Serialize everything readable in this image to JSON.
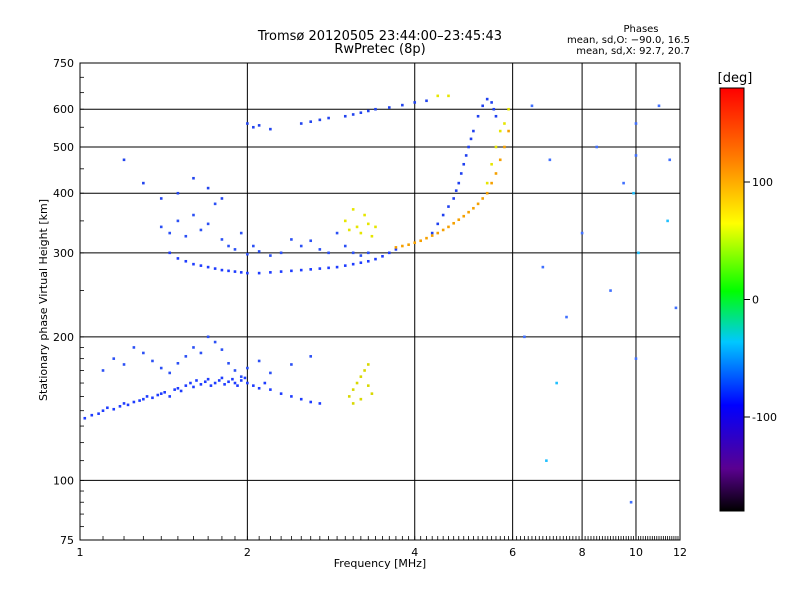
{
  "chart_data": {
    "type": "scatter",
    "title": "Tromsø 20120505 23:44:00–23:45:43",
    "subtitle": "RwPretec (8p)",
    "xlabel": "Frequency [MHz]",
    "ylabel": "Stationary phase Virtual Height [km]",
    "x_scale": "log",
    "y_scale": "log",
    "xlim": [
      1,
      12
    ],
    "ylim": [
      75,
      750
    ],
    "x_ticks": [
      1,
      2,
      4,
      6,
      8,
      10,
      12
    ],
    "y_ticks": [
      75,
      100,
      200,
      300,
      400,
      500,
      600,
      750
    ],
    "grid": true,
    "phases_header": "Phases",
    "phases_line1": "mean, sd,O: −90.0, 16.5",
    "phases_line2": "mean, sd,X:  92.7, 20.7",
    "colorbar": {
      "label": "[deg]",
      "range": [
        -180,
        180
      ],
      "ticks": [
        100,
        0,
        -100
      ],
      "colors": [
        "#000000",
        "#5a0090",
        "#0000ff",
        "#00c8ff",
        "#00ff00",
        "#ffff00",
        "#ff8000",
        "#ff0000"
      ]
    },
    "series": [
      {
        "color": "#1e3cff",
        "x": [
          1.02,
          1.05,
          1.08,
          1.1,
          1.12,
          1.15,
          1.18,
          1.2,
          1.22,
          1.25,
          1.28,
          1.3,
          1.32,
          1.35,
          1.38,
          1.4,
          1.42,
          1.45,
          1.48,
          1.5,
          1.52,
          1.55,
          1.58,
          1.6,
          1.62,
          1.65,
          1.68,
          1.7,
          1.72,
          1.75,
          1.78,
          1.8,
          1.82,
          1.85,
          1.88,
          1.9,
          1.92,
          1.95,
          1.98,
          2.0,
          2.05,
          2.1,
          2.15,
          2.2,
          2.3,
          2.4,
          2.5,
          2.6,
          2.7
        ],
        "y": [
          135,
          137,
          138,
          140,
          142,
          141,
          143,
          145,
          144,
          146,
          147,
          148,
          150,
          149,
          151,
          152,
          153,
          150,
          155,
          156,
          154,
          158,
          160,
          157,
          162,
          159,
          161,
          163,
          158,
          160,
          162,
          164,
          159,
          161,
          163,
          160,
          158,
          162,
          164,
          160,
          158,
          156,
          160,
          155,
          152,
          150,
          148,
          146,
          145
        ]
      },
      {
        "color": "#2b50f5",
        "x": [
          1.1,
          1.15,
          1.2,
          1.25,
          1.3,
          1.35,
          1.4,
          1.45,
          1.5,
          1.55,
          1.6,
          1.65,
          1.7,
          1.75,
          1.8,
          1.85,
          1.9,
          1.95,
          2.0,
          2.1,
          2.2,
          2.4,
          2.6
        ],
        "y": [
          170,
          180,
          175,
          190,
          185,
          178,
          172,
          168,
          176,
          182,
          190,
          185,
          200,
          195,
          188,
          176,
          170,
          165,
          172,
          178,
          168,
          175,
          182
        ]
      },
      {
        "color": "#1e3cff",
        "x": [
          1.45,
          1.5,
          1.55,
          1.6,
          1.65,
          1.7,
          1.75,
          1.8,
          1.85,
          1.9,
          1.95,
          2.0,
          2.1,
          2.2,
          2.3,
          2.4,
          2.5,
          2.6,
          2.7,
          2.8,
          2.9,
          3.0,
          3.1,
          3.2,
          3.3,
          3.4,
          3.5,
          3.6,
          3.7
        ],
        "y": [
          300,
          292,
          288,
          284,
          282,
          280,
          278,
          276,
          275,
          274,
          273,
          272,
          272,
          273,
          274,
          275,
          276,
          277,
          278,
          279,
          280,
          282,
          284,
          286,
          288,
          291,
          295,
          300,
          305
        ]
      },
      {
        "color": "#2b50f5",
        "x": [
          1.4,
          1.45,
          1.5,
          1.55,
          1.6,
          1.65,
          1.7,
          1.75,
          1.8,
          1.85,
          1.9,
          1.95,
          2.0,
          2.05,
          2.1,
          2.2,
          2.3,
          2.4,
          2.5,
          2.6,
          2.7,
          2.8,
          2.9,
          3.0,
          3.1,
          3.2,
          3.3
        ],
        "y": [
          340,
          330,
          350,
          325,
          360,
          335,
          345,
          380,
          320,
          310,
          305,
          330,
          298,
          310,
          302,
          296,
          300,
          320,
          310,
          318,
          305,
          300,
          330,
          310,
          300,
          296,
          300
        ]
      },
      {
        "color": "#2244ee",
        "x": [
          1.2,
          1.3,
          1.4,
          1.5,
          1.6,
          1.7,
          1.8,
          2.0,
          2.05,
          2.1,
          2.2,
          2.5,
          2.6,
          2.7,
          2.8,
          3.0,
          3.1,
          3.2,
          3.3,
          3.4,
          3.6,
          3.8,
          4.0,
          4.2
        ],
        "y": [
          470,
          420,
          390,
          400,
          430,
          410,
          390,
          560,
          550,
          555,
          545,
          560,
          565,
          570,
          575,
          580,
          585,
          590,
          595,
          600,
          605,
          612,
          620,
          625
        ]
      },
      {
        "color": "#1f40f0",
        "x": [
          4.3,
          4.4,
          4.5,
          4.6,
          4.7,
          4.75,
          4.8,
          4.85,
          4.9,
          4.95,
          5.0,
          5.05,
          5.1,
          5.2,
          5.3,
          5.4,
          5.5,
          5.55,
          5.6
        ],
        "y": [
          330,
          345,
          360,
          375,
          390,
          405,
          420,
          440,
          460,
          480,
          500,
          520,
          540,
          580,
          610,
          630,
          620,
          600,
          580
        ]
      },
      {
        "color": "#f5a000",
        "x": [
          3.7,
          3.8,
          3.9,
          4.0,
          4.1,
          4.2,
          4.3,
          4.4,
          4.5,
          4.6,
          4.7,
          4.8,
          4.9,
          5.0,
          5.1,
          5.2,
          5.3,
          5.4,
          5.5,
          5.6,
          5.7,
          5.8,
          5.9
        ],
        "y": [
          308,
          310,
          312,
          315,
          318,
          322,
          326,
          330,
          335,
          340,
          346,
          352,
          358,
          365,
          372,
          380,
          390,
          400,
          420,
          440,
          470,
          500,
          540
        ]
      },
      {
        "color": "#e6e600",
        "x": [
          3.0,
          3.05,
          3.1,
          3.15,
          3.2,
          3.25,
          3.3,
          3.35,
          3.4,
          5.4,
          5.5,
          5.6,
          5.7,
          5.8,
          5.9,
          4.4,
          4.6
        ],
        "y": [
          350,
          335,
          370,
          340,
          330,
          360,
          345,
          325,
          340,
          420,
          460,
          500,
          540,
          560,
          600,
          640,
          640
        ]
      },
      {
        "color": "#d8d800",
        "x": [
          3.05,
          3.1,
          3.15,
          3.2,
          3.25,
          3.3,
          3.35,
          3.1,
          3.2,
          3.3
        ],
        "y": [
          150,
          155,
          160,
          165,
          170,
          158,
          152,
          145,
          148,
          175
        ]
      },
      {
        "color": "#4070ff",
        "x": [
          6.5,
          7.0,
          7.5,
          8.0,
          8.5,
          9.0,
          9.5,
          10.0,
          10.0,
          10.0,
          11.0,
          11.5,
          11.8,
          6.3,
          6.8,
          9.8
        ],
        "y": [
          610,
          470,
          220,
          330,
          500,
          250,
          420,
          560,
          480,
          180,
          610,
          470,
          230,
          200,
          280,
          90
        ]
      },
      {
        "color": "#20c0ff",
        "x": [
          9.9,
          10.1,
          11.4,
          7.2,
          6.9
        ],
        "y": [
          400,
          300,
          350,
          160,
          110
        ]
      }
    ]
  }
}
